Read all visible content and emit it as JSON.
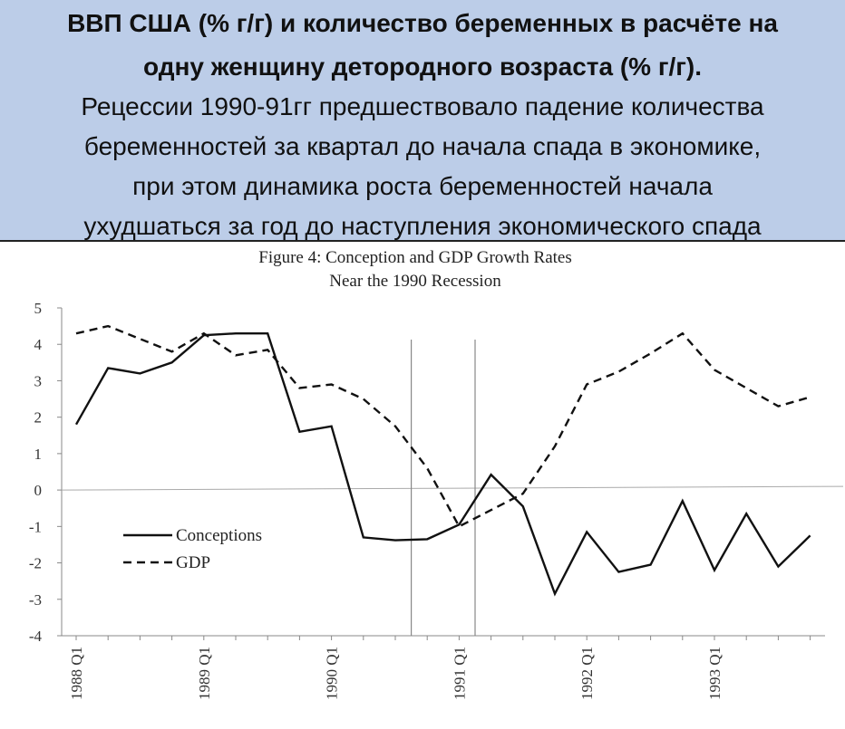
{
  "header": {
    "line1": "ВВП США (% г/г) и количество беременных в расчёте на",
    "line2": "одну женщину детородного возраста (% г/г).",
    "line3": "Рецессии 1990-91гг предшествовало падение количества",
    "line4": "беременностей за квартал до начала спада в экономике,",
    "line5": "при этом динамика роста беременностей начала",
    "line6": "ухудшаться за год до наступления экономического спада",
    "background": "#bccde8"
  },
  "chart_data": {
    "type": "line",
    "title": "Figure 4: Conception and GDP Growth Rates",
    "subtitle": "Near the 1990 Recession",
    "ylim": [
      -4,
      5
    ],
    "yticks": [
      "5",
      "4",
      "3",
      "2",
      "1",
      "0",
      "-1",
      "-2",
      "-3",
      "-4"
    ],
    "xticks": [
      "1988 Q1",
      "1989 Q1",
      "1990 Q1",
      "1991 Q1",
      "1992 Q1",
      "1993 Q1"
    ],
    "x_quarter_index": [
      0,
      1,
      2,
      3,
      4,
      5,
      6,
      7,
      8,
      9,
      10,
      11,
      12,
      13,
      14,
      15,
      16,
      17,
      18,
      19,
      20,
      21,
      22,
      23
    ],
    "recession_lines_quarter_index": [
      10.5,
      12.5
    ],
    "series": [
      {
        "name": "Conceptions",
        "style": "solid",
        "values": [
          1.8,
          3.35,
          3.2,
          3.5,
          4.25,
          4.3,
          4.3,
          1.6,
          1.75,
          -1.3,
          -1.38,
          -1.35,
          -0.95,
          0.42,
          -0.45,
          -2.85,
          -1.15,
          -2.25,
          -2.05,
          -0.3,
          -2.2,
          -0.65,
          -2.1,
          -1.25
        ]
      },
      {
        "name": "GDP",
        "style": "dashed",
        "values": [
          4.3,
          4.5,
          4.15,
          3.8,
          4.3,
          3.7,
          3.85,
          2.8,
          2.9,
          2.5,
          1.75,
          0.6,
          -1.0,
          -0.55,
          -0.1,
          1.2,
          2.9,
          3.25,
          3.75,
          4.3,
          3.3,
          2.8,
          2.3,
          2.55
        ]
      }
    ],
    "legend_position": "lower-left",
    "grid": false,
    "colors": {
      "line": "#111111",
      "axis": "#888888",
      "recession": "#888888"
    }
  }
}
